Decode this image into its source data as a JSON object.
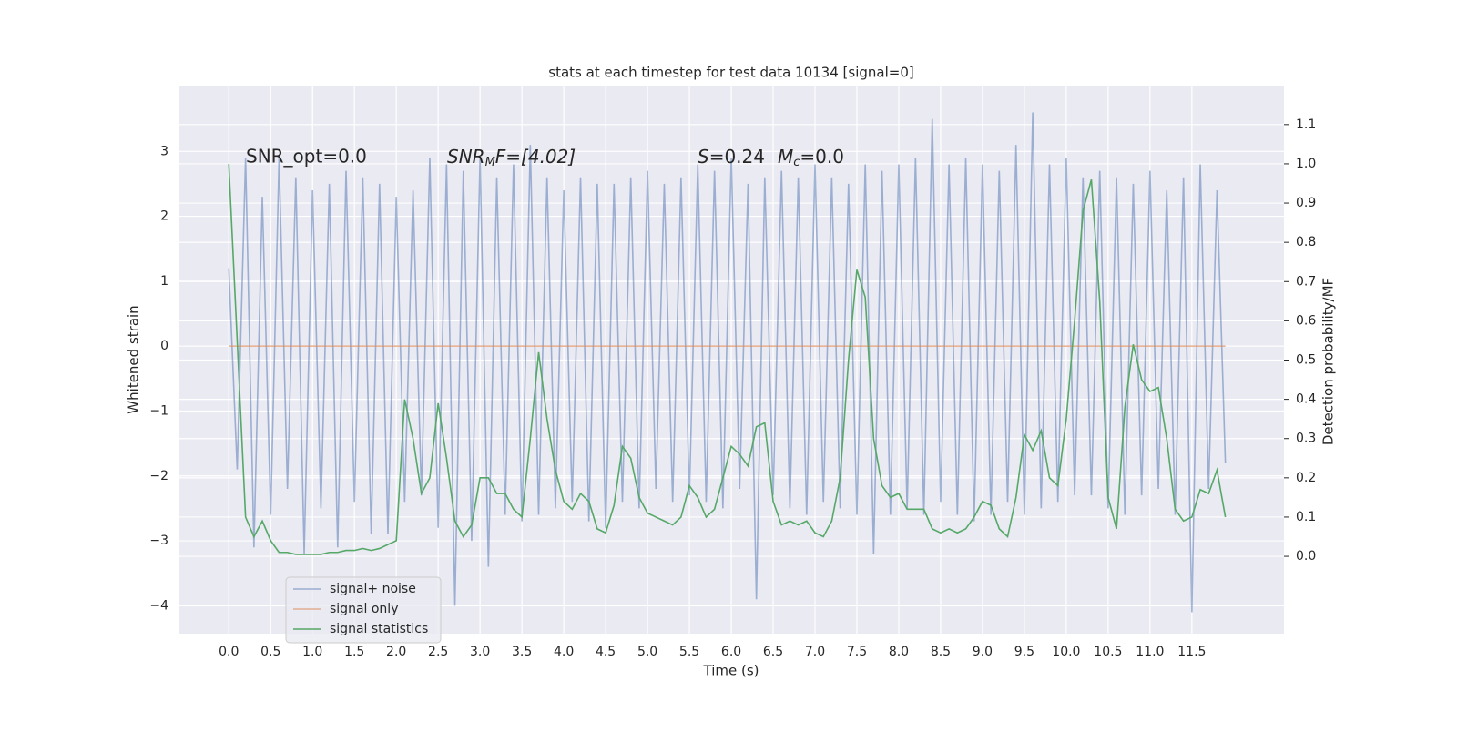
{
  "chart_data": {
    "type": "line",
    "title": "stats at each timestep for test data 10134 [signal=0]",
    "xlabel": "Time (s)",
    "ylabel": "Whitened strain",
    "y2label": "Detection probability/MF",
    "annotations": {
      "snr_opt": "SNR_opt=0.0",
      "snr_mf": [
        "SNR",
        "M",
        "F=[4.02]"
      ],
      "s": [
        "S",
        "=0.24",
        "M",
        "c",
        "=0.0"
      ]
    },
    "grid": true,
    "legend": "lower left",
    "xlim": [
      -0.59,
      12.6
    ],
    "ylim": [
      -4.43,
      4.0
    ],
    "y2lim": [
      -0.197,
      1.197
    ],
    "xticks": [
      {
        "value": 0,
        "label": "0.0"
      },
      {
        "value": 0.5,
        "label": "0.5"
      },
      {
        "value": 1,
        "label": "1.0"
      },
      {
        "value": 1.5,
        "label": "1.5"
      },
      {
        "value": 2,
        "label": "2.0"
      },
      {
        "value": 2.5,
        "label": "2.5"
      },
      {
        "value": 3,
        "label": "3.0"
      },
      {
        "value": 3.5,
        "label": "3.5"
      },
      {
        "value": 4,
        "label": "4.0"
      },
      {
        "value": 4.5,
        "label": "4.5"
      },
      {
        "value": 5,
        "label": "5.0"
      },
      {
        "value": 5.5,
        "label": "5.5"
      },
      {
        "value": 6,
        "label": "6.0"
      },
      {
        "value": 6.5,
        "label": "6.5"
      },
      {
        "value": 7,
        "label": "7.0"
      },
      {
        "value": 7.5,
        "label": "7.5"
      },
      {
        "value": 8,
        "label": "8.0"
      },
      {
        "value": 8.5,
        "label": "8.5"
      },
      {
        "value": 9,
        "label": "9.0"
      },
      {
        "value": 9.5,
        "label": "9.5"
      },
      {
        "value": 10,
        "label": "10.0"
      },
      {
        "value": 10.5,
        "label": "10.5"
      },
      {
        "value": 11,
        "label": "11.0"
      },
      {
        "value": 11.5,
        "label": "11.5"
      }
    ],
    "yticks": [
      {
        "value": -4,
        "label": "−4"
      },
      {
        "value": -3,
        "label": "−3"
      },
      {
        "value": -2,
        "label": "−2"
      },
      {
        "value": -1,
        "label": "−1"
      },
      0,
      1,
      2,
      3
    ],
    "y2ticks": [
      {
        "value": 0,
        "label": "0.0"
      },
      0.1,
      0.2,
      0.3,
      0.4,
      0.5,
      0.6,
      0.7,
      0.8,
      0.9,
      {
        "value": 1,
        "label": "1.0"
      },
      1.1
    ],
    "x": [
      0.0,
      0.1,
      0.2,
      0.3,
      0.4,
      0.5,
      0.6,
      0.7,
      0.8,
      0.9,
      1.0,
      1.1,
      1.2,
      1.3,
      1.4,
      1.5,
      1.6,
      1.7,
      1.8,
      1.9,
      2.0,
      2.1,
      2.2,
      2.3,
      2.4,
      2.5,
      2.6,
      2.7,
      2.8,
      2.9,
      3.0,
      3.1,
      3.2,
      3.3,
      3.4,
      3.5,
      3.6,
      3.7,
      3.8,
      3.9,
      4.0,
      4.1,
      4.2,
      4.3,
      4.4,
      4.5,
      4.6,
      4.7,
      4.8,
      4.9,
      5.0,
      5.1,
      5.2,
      5.3,
      5.4,
      5.5,
      5.6,
      5.7,
      5.8,
      5.9,
      6.0,
      6.1,
      6.2,
      6.3,
      6.4,
      6.5,
      6.6,
      6.7,
      6.8,
      6.9,
      7.0,
      7.1,
      7.2,
      7.3,
      7.4,
      7.5,
      7.6,
      7.7,
      7.8,
      7.9,
      8.0,
      8.1,
      8.2,
      8.3,
      8.4,
      8.5,
      8.6,
      8.7,
      8.8,
      8.9,
      9.0,
      9.1,
      9.2,
      9.3,
      9.4,
      9.5,
      9.6,
      9.7,
      9.8,
      9.9,
      10.0,
      10.1,
      10.2,
      10.3,
      10.4,
      10.5,
      10.6,
      10.7,
      10.8,
      10.9,
      11.0,
      11.1,
      11.2,
      11.3,
      11.4,
      11.5,
      11.6,
      11.7,
      11.8,
      11.9
    ],
    "series": [
      {
        "name": "signal+ noise",
        "color": "#4c72b0",
        "alpha": 0.5,
        "values": [
          1.2,
          -1.9,
          2.9,
          -3.1,
          2.3,
          -2.6,
          2.9,
          -2.2,
          2.6,
          -3.2,
          2.4,
          -2.5,
          2.5,
          -3.1,
          2.7,
          -2.4,
          2.6,
          -2.9,
          2.5,
          -2.9,
          2.3,
          -2.4,
          2.4,
          -2.3,
          2.9,
          -2.8,
          2.8,
          -4.0,
          2.7,
          -3.0,
          2.9,
          -3.4,
          2.6,
          -2.6,
          2.8,
          -2.7,
          3.1,
          -2.6,
          2.6,
          -2.5,
          2.4,
          -2.4,
          2.6,
          -2.7,
          2.5,
          -2.8,
          2.5,
          -2.4,
          2.6,
          -2.5,
          2.7,
          -2.2,
          2.5,
          -2.4,
          2.6,
          -2.3,
          2.8,
          -2.4,
          2.7,
          -2.5,
          2.9,
          -2.2,
          2.5,
          -3.9,
          2.6,
          -2.3,
          2.7,
          -2.5,
          2.6,
          -2.6,
          2.8,
          -2.4,
          2.6,
          -2.5,
          2.5,
          -2.6,
          2.8,
          -3.2,
          2.7,
          -2.6,
          2.8,
          -2.5,
          2.9,
          -2.6,
          3.5,
          -2.4,
          2.8,
          -2.6,
          2.9,
          -2.7,
          2.8,
          -2.6,
          2.7,
          -2.4,
          3.1,
          -2.6,
          3.6,
          -2.5,
          2.8,
          -2.4,
          2.9,
          -2.3,
          2.6,
          -2.3,
          2.7,
          -2.5,
          2.6,
          -2.6,
          2.5,
          -2.3,
          2.7,
          -2.2,
          2.4,
          -2.6,
          2.6,
          -4.1,
          2.8,
          -2.2,
          2.4,
          -1.8
        ]
      },
      {
        "name": "signal only",
        "color": "#dd8452",
        "alpha": 0.6,
        "values": [
          0,
          0,
          0,
          0,
          0,
          0,
          0,
          0,
          0,
          0,
          0,
          0,
          0,
          0,
          0,
          0,
          0,
          0,
          0,
          0,
          0,
          0,
          0,
          0,
          0,
          0,
          0,
          0,
          0,
          0,
          0,
          0,
          0,
          0,
          0,
          0,
          0,
          0,
          0,
          0,
          0,
          0,
          0,
          0,
          0,
          0,
          0,
          0,
          0,
          0,
          0,
          0,
          0,
          0,
          0,
          0,
          0,
          0,
          0,
          0,
          0,
          0,
          0,
          0,
          0,
          0,
          0,
          0,
          0,
          0,
          0,
          0,
          0,
          0,
          0,
          0,
          0,
          0,
          0,
          0,
          0,
          0,
          0,
          0,
          0,
          0,
          0,
          0,
          0,
          0,
          0,
          0,
          0,
          0,
          0,
          0,
          0,
          0,
          0,
          0,
          0,
          0,
          0,
          0,
          0,
          0,
          0,
          0,
          0,
          0,
          0,
          0,
          0,
          0,
          0,
          0,
          0,
          0,
          0,
          0
        ]
      },
      {
        "name": "signal statistics",
        "color": "#55a868",
        "alpha": 1,
        "axis": "y2",
        "values": [
          1.0,
          0.55,
          0.1,
          0.05,
          0.09,
          0.04,
          0.01,
          0.01,
          0.005,
          0.005,
          0.005,
          0.005,
          0.01,
          0.01,
          0.015,
          0.015,
          0.02,
          0.015,
          0.02,
          0.03,
          0.04,
          0.4,
          0.3,
          0.16,
          0.2,
          0.39,
          0.25,
          0.09,
          0.05,
          0.08,
          0.2,
          0.2,
          0.16,
          0.16,
          0.12,
          0.1,
          0.3,
          0.52,
          0.35,
          0.22,
          0.14,
          0.12,
          0.16,
          0.14,
          0.07,
          0.06,
          0.13,
          0.28,
          0.25,
          0.15,
          0.11,
          0.1,
          0.09,
          0.08,
          0.1,
          0.18,
          0.15,
          0.1,
          0.12,
          0.2,
          0.28,
          0.26,
          0.23,
          0.33,
          0.34,
          0.14,
          0.08,
          0.09,
          0.08,
          0.09,
          0.06,
          0.05,
          0.09,
          0.2,
          0.5,
          0.73,
          0.66,
          0.3,
          0.18,
          0.15,
          0.16,
          0.12,
          0.12,
          0.12,
          0.07,
          0.06,
          0.07,
          0.06,
          0.07,
          0.1,
          0.14,
          0.13,
          0.07,
          0.05,
          0.15,
          0.31,
          0.27,
          0.32,
          0.2,
          0.18,
          0.35,
          0.6,
          0.88,
          0.96,
          0.65,
          0.15,
          0.07,
          0.38,
          0.54,
          0.45,
          0.42,
          0.43,
          0.3,
          0.12,
          0.09,
          0.1,
          0.17,
          0.16,
          0.22,
          0.1
        ]
      }
    ]
  }
}
